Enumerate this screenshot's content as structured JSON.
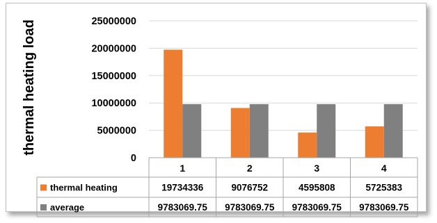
{
  "chart_data": {
    "type": "bar",
    "ylabel": "thermal heating load",
    "ylim": [
      0,
      25000000
    ],
    "yticks": [
      "0",
      "5000000",
      "10000000",
      "15000000",
      "20000000",
      "25000000"
    ],
    "categories": [
      "1",
      "2",
      "3",
      "4"
    ],
    "grid": true,
    "legend_placement": "data table (bottom)",
    "series": [
      {
        "name": "thermal heating",
        "values": [
          19734336,
          9076752,
          4595808,
          5725383
        ],
        "labels": [
          "19734336",
          "9076752",
          "4595808",
          "5725383"
        ],
        "color": "#ed7d31"
      },
      {
        "name": "average",
        "values": [
          9783069.75,
          9783069.75,
          9783069.75,
          9783069.75
        ],
        "labels": [
          "9783069.75",
          "9783069.75",
          "9783069.75",
          "9783069.75"
        ],
        "color": "#808080"
      }
    ]
  }
}
